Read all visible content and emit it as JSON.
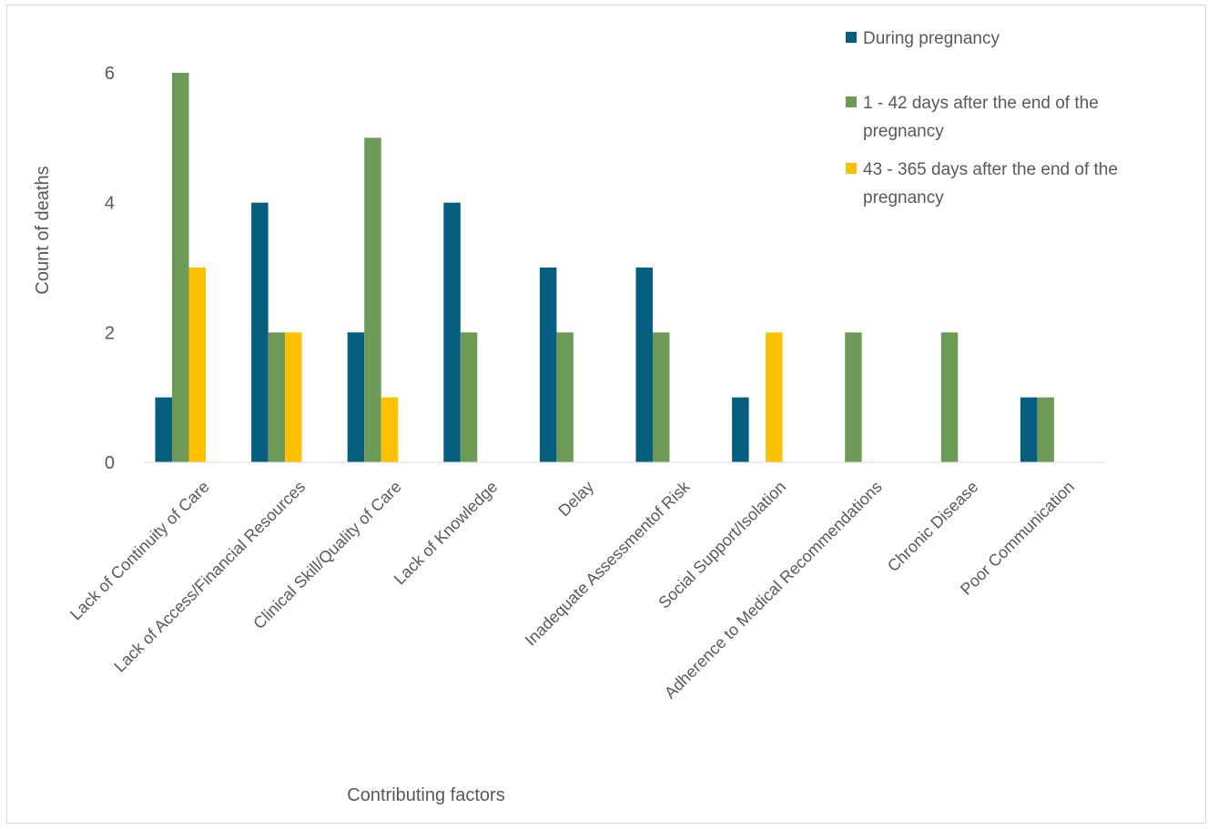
{
  "chart_data": {
    "type": "bar",
    "title": "",
    "xlabel": "Contributing factors",
    "ylabel": "Count of deaths",
    "ylim": [
      0,
      6.5
    ],
    "yticks": [
      0,
      2,
      4,
      6
    ],
    "grid": false,
    "legend_position": "top-right",
    "categories": [
      "Lack of Continuity of Care",
      "Lack of Access/Financial Resources",
      "Clinical Skill/Quality of Care",
      "Lack of Knowledge",
      "Delay",
      "Inadequate Assessmentof Risk",
      "Social Support/Isolation",
      "Adherence to Medical Recommendations",
      "Chronic Disease",
      "Poor Communication"
    ],
    "series": [
      {
        "name": "During pregnancy",
        "color": "#065f7f",
        "values": [
          1,
          4,
          2,
          4,
          3,
          3,
          1,
          null,
          null,
          1
        ]
      },
      {
        "name": "1 - 42 days after the end of the pregnancy",
        "color": "#6e9a58",
        "values": [
          6,
          2,
          5,
          2,
          2,
          2,
          null,
          2,
          2,
          1
        ]
      },
      {
        "name": "43 - 365 days after the end of the pregnancy",
        "color": "#ffc000",
        "values": [
          3,
          2,
          1,
          null,
          null,
          null,
          2,
          null,
          null,
          null
        ]
      }
    ]
  }
}
